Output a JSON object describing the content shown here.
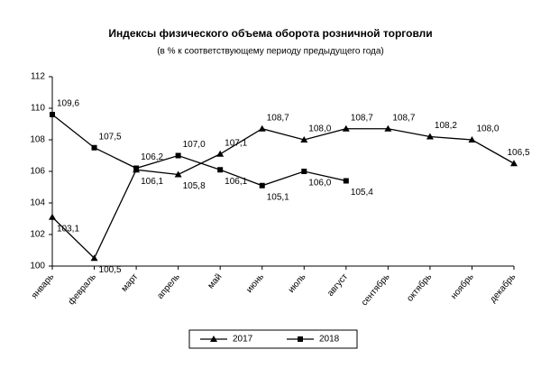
{
  "chart_data": {
    "type": "line",
    "title": "Индексы физического объема оборота розничной торговли",
    "subtitle": "(в % к соответствующему периоду предыдущего года)",
    "categories": [
      "январь",
      "февраль",
      "март",
      "апрель",
      "май",
      "июнь",
      "июль",
      "август",
      "сентябрь",
      "октябрь",
      "ноябрь",
      "декабрь"
    ],
    "series": [
      {
        "name": "2017",
        "color": "#000000",
        "marker": "triangle",
        "values": [
          103.1,
          100.5,
          106.1,
          105.8,
          107.1,
          108.7,
          108.0,
          108.7,
          108.7,
          108.2,
          108.0,
          106.5
        ],
        "value_labels": [
          "103,1",
          "100,5",
          "106,1",
          "105,8",
          "107,1",
          "108,7",
          "108,0",
          "108,7",
          "108,7",
          "108,2",
          "108,0",
          "106,5"
        ]
      },
      {
        "name": "2018",
        "color": "#000000",
        "marker": "square",
        "values": [
          109.6,
          107.5,
          106.2,
          107.0,
          106.1,
          105.1,
          106.0,
          105.4,
          null,
          null,
          null,
          null
        ],
        "value_labels": [
          "109,6",
          "107,5",
          "106,2",
          "107,0",
          "106,1",
          "105,1",
          "106,0",
          "105,4",
          null,
          null,
          null,
          null
        ]
      }
    ],
    "ylim": [
      100,
      112
    ],
    "yticks": [
      100,
      102,
      104,
      106,
      108,
      110,
      112
    ],
    "grid": false,
    "legend": "bottom"
  }
}
